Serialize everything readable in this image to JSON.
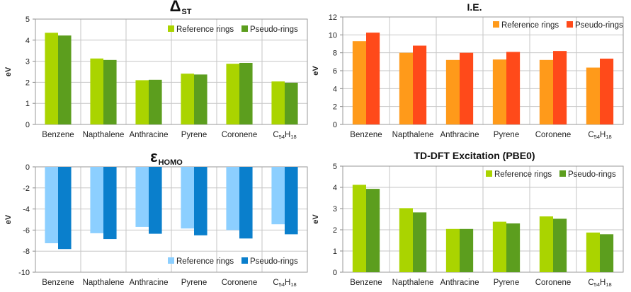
{
  "chart_data": [
    {
      "id": "dst",
      "type": "bar",
      "title_main": "Δ",
      "title_sub": "ST",
      "ylabel": "eV",
      "categories": [
        "Benzene",
        "Napthalene",
        "Anthracine",
        "Pyrene",
        "Coronene",
        "C54H18"
      ],
      "ylim": [
        0,
        5
      ],
      "yticks": [
        0,
        1,
        2,
        3,
        4,
        5
      ],
      "grid": true,
      "legend_position": "top-right",
      "series": [
        {
          "name": "Reference rings",
          "values": [
            4.35,
            3.13,
            2.1,
            2.41,
            2.88,
            2.04
          ],
          "color": "#aad400"
        },
        {
          "name": "Pseudo-rings",
          "values": [
            4.22,
            3.06,
            2.12,
            2.37,
            2.92,
            1.98
          ],
          "color": "#5c9e1e"
        }
      ]
    },
    {
      "id": "ie",
      "type": "bar",
      "title_main": "I.E.",
      "title_sub": "",
      "ylabel": "eV",
      "categories": [
        "Benzene",
        "Napthalene",
        "Anthracine",
        "Pyrene",
        "Coronene",
        "C54H18"
      ],
      "ylim": [
        0,
        12
      ],
      "yticks": [
        0,
        2,
        4,
        6,
        8,
        10,
        12
      ],
      "grid": true,
      "legend_position": "top-right",
      "series": [
        {
          "name": "Reference rings",
          "values": [
            9.3,
            8.0,
            7.2,
            7.25,
            7.2,
            6.35
          ],
          "color": "#ff9a1a"
        },
        {
          "name": "Pseudo-rings",
          "values": [
            10.25,
            8.8,
            8.0,
            8.1,
            8.2,
            7.35
          ],
          "color": "#ff4a1a"
        }
      ]
    },
    {
      "id": "homo",
      "type": "bar",
      "title_main": "ε",
      "title_sub": "HOMO",
      "ylabel": "eV",
      "categories": [
        "Benzene",
        "Napthalene",
        "Anthracine",
        "Pyrene",
        "Coronene",
        "C54H18"
      ],
      "ylim": [
        -10,
        0
      ],
      "yticks": [
        0,
        -2,
        -4,
        -6,
        -8,
        -10
      ],
      "grid": true,
      "legend_position": "bottom-right",
      "series": [
        {
          "name": "Reference rings",
          "values": [
            -7.25,
            -6.3,
            -5.7,
            -5.85,
            -6.0,
            -5.45
          ],
          "color": "#8ccfff"
        },
        {
          "name": "Pseudo-rings",
          "values": [
            -7.8,
            -6.85,
            -6.35,
            -6.5,
            -6.8,
            -6.4
          ],
          "color": "#0a7fcc"
        }
      ]
    },
    {
      "id": "tddft",
      "type": "bar",
      "title_main": "TD-DFT Excitation (PBE0)",
      "title_sub": "",
      "ylabel": "eV",
      "categories": [
        "Benzene",
        "Napthalene",
        "Anthracine",
        "Pyrene",
        "Coronene",
        "C54H18"
      ],
      "ylim": [
        0,
        5
      ],
      "yticks": [
        0,
        1,
        2,
        3,
        4,
        5
      ],
      "grid": true,
      "legend_position": "top-right",
      "series": [
        {
          "name": "Reference rings",
          "values": [
            4.12,
            3.02,
            2.04,
            2.38,
            2.63,
            1.87
          ],
          "color": "#aad400"
        },
        {
          "name": "Pseudo-rings",
          "values": [
            3.93,
            2.82,
            2.04,
            2.3,
            2.52,
            1.79
          ],
          "color": "#5c9e1e"
        }
      ]
    }
  ]
}
